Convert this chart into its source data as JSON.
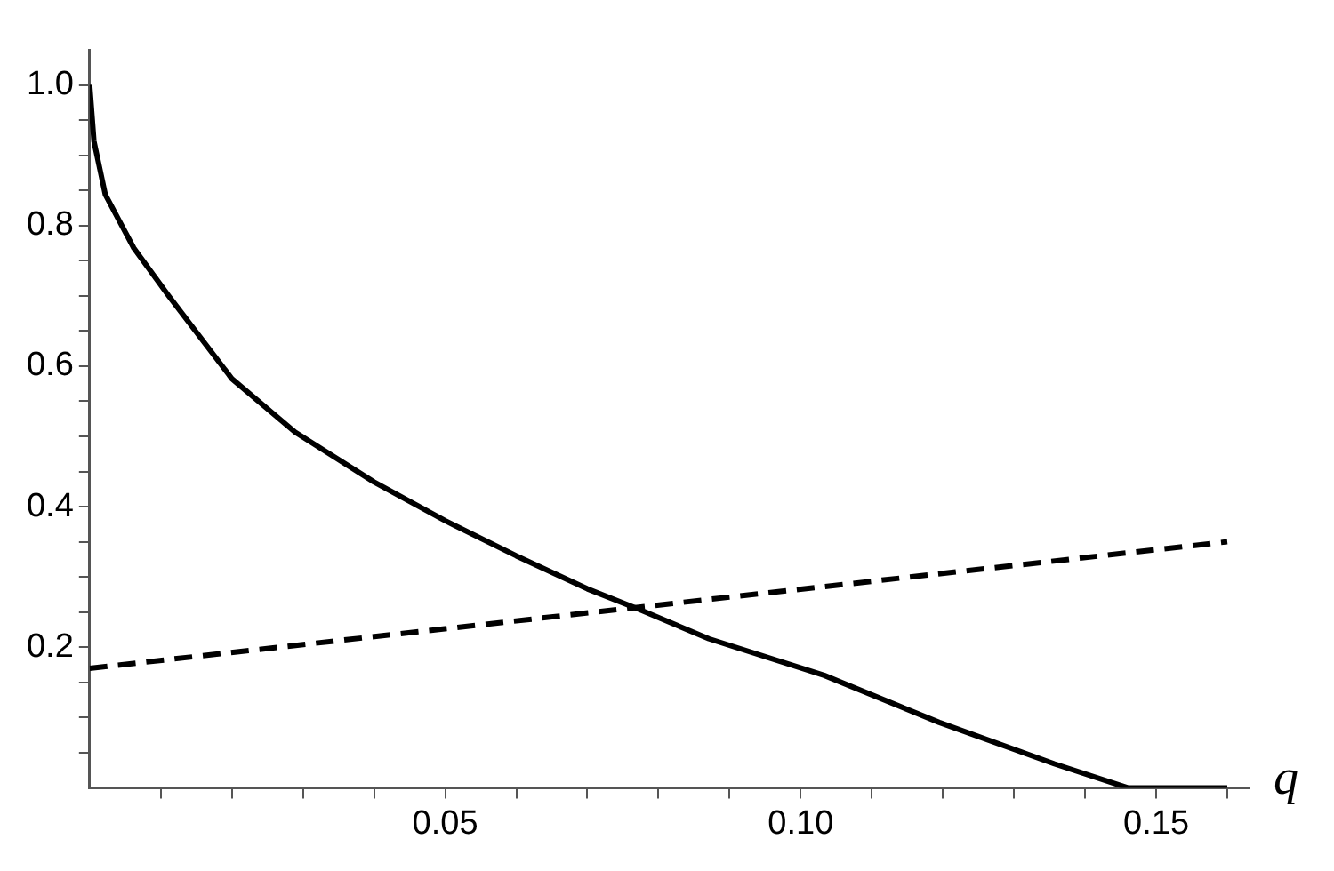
{
  "chart_data": {
    "type": "line",
    "xlabel": "q",
    "xlim": [
      0,
      0.163
    ],
    "ylim": [
      0,
      1.05
    ],
    "xticks": [
      {
        "value": 0.01,
        "label": null
      },
      {
        "value": 0.02,
        "label": null
      },
      {
        "value": 0.03,
        "label": null
      },
      {
        "value": 0.04,
        "label": null
      },
      {
        "value": 0.05,
        "label": "0.05"
      },
      {
        "value": 0.06,
        "label": null
      },
      {
        "value": 0.07,
        "label": null
      },
      {
        "value": 0.08,
        "label": null
      },
      {
        "value": 0.09,
        "label": null
      },
      {
        "value": 0.1,
        "label": "0.10"
      },
      {
        "value": 0.11,
        "label": null
      },
      {
        "value": 0.12,
        "label": null
      },
      {
        "value": 0.13,
        "label": null
      },
      {
        "value": 0.14,
        "label": null
      },
      {
        "value": 0.15,
        "label": "0.15"
      },
      {
        "value": 0.16,
        "label": null
      }
    ],
    "yticks": [
      {
        "value": 0.05,
        "label": null
      },
      {
        "value": 0.1,
        "label": null
      },
      {
        "value": 0.15,
        "label": null
      },
      0.2,
      {
        "value": 0.25,
        "label": null
      },
      {
        "value": 0.3,
        "label": null
      },
      {
        "value": 0.35,
        "label": null
      },
      0.4,
      {
        "value": 0.45,
        "label": null
      },
      {
        "value": 0.5,
        "label": null
      },
      {
        "value": 0.55,
        "label": null
      },
      0.6,
      {
        "value": 0.65,
        "label": null
      },
      {
        "value": 0.7,
        "label": null
      },
      {
        "value": 0.75,
        "label": null
      },
      0.8,
      {
        "value": 0.85,
        "label": null
      },
      {
        "value": 0.9,
        "label": null
      },
      {
        "value": 0.95,
        "label": null
      },
      {
        "value": 1.0,
        "label": "1.0"
      }
    ],
    "grid": false,
    "legend": false,
    "marker": "none",
    "series": [
      {
        "color": "#000000",
        "line_style": "solid",
        "x": [
          0,
          0.0006,
          0.0022,
          0.0062,
          0.0111,
          0.02,
          0.0289,
          0.04,
          0.05,
          0.06,
          0.07,
          0.077,
          0.0871,
          0.1033,
          0.1195,
          0.1357,
          0.146,
          0.16
        ],
        "values": [
          1.0,
          0.92,
          0.844,
          0.768,
          0.7,
          0.582,
          0.506,
          0.435,
          0.38,
          0.33,
          0.283,
          0.255,
          0.212,
          0.16,
          0.093,
          0.034,
          0,
          0
        ]
      },
      {
        "color": "#000000",
        "line_style": "dashed",
        "x": [
          0,
          0.16
        ],
        "values": [
          0.17,
          0.35
        ]
      }
    ]
  }
}
